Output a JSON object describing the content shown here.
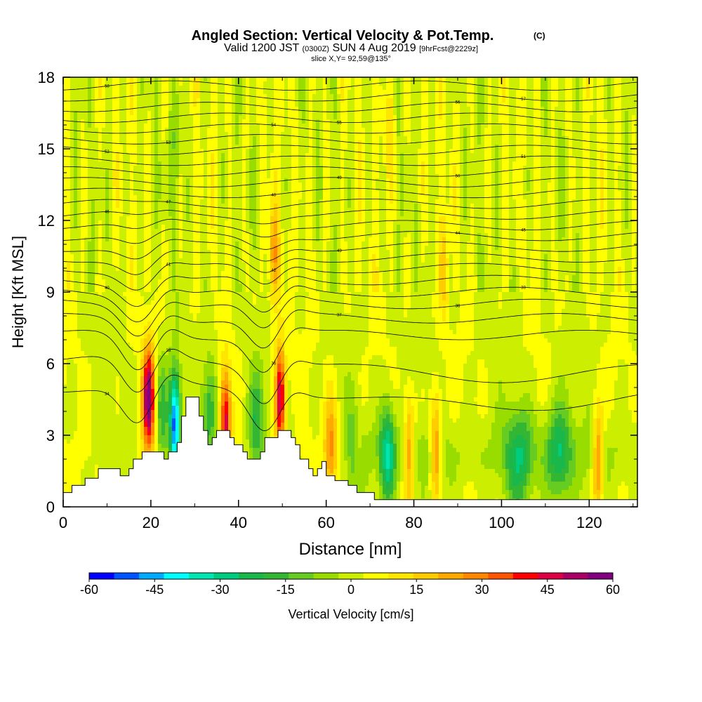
{
  "chart_data": {
    "type": "heatmap",
    "title": "Angled Section: Vertical Velocity & Pot.Temp.",
    "title_mark": "(C)",
    "subtitle_parts": [
      "Valid 1200 JST",
      "(0300Z)",
      "SUN 4 Aug 2019",
      "[9hrFcst@2229z]"
    ],
    "slice_label": "slice X,Y= 92,59@135°",
    "xlabel": "Distance [nm]",
    "ylabel": "Height [Kft MSL]",
    "xlim": [
      0,
      131
    ],
    "ylim": [
      0,
      18
    ],
    "x_ticks": [
      "0",
      "20",
      "40",
      "60",
      "80",
      "100",
      "120"
    ],
    "y_ticks": [
      "0",
      "3",
      "6",
      "9",
      "12",
      "15",
      "18"
    ],
    "colorbar": {
      "label": "Vertical Velocity [cm/s]",
      "tick_labels": [
        "-60",
        "-45",
        "-30",
        "-15",
        "0",
        "15",
        "30",
        "45",
        "60"
      ],
      "range": [
        -60,
        60
      ],
      "colors": [
        "#0000ff",
        "#0055ff",
        "#00aaff",
        "#00ffff",
        "#00e6b0",
        "#00cc80",
        "#1ab84a",
        "#33b633",
        "#66cc22",
        "#99dd00",
        "#ccee00",
        "#ffff00",
        "#ffe600",
        "#ffcc00",
        "#ffaa00",
        "#ff8800",
        "#ff5500",
        "#ff0000",
        "#dd0044",
        "#aa0066",
        "#800080"
      ]
    },
    "theta_contours": [
      {
        "label": "34",
        "base": 5.0
      },
      {
        "label": "35",
        "base": 6.2
      },
      {
        "label": "36",
        "base": 7.2
      },
      {
        "label": "37",
        "base": 7.9
      },
      {
        "label": "38",
        "base": 8.5
      },
      {
        "label": "39",
        "base": 9.0
      },
      {
        "label": "40",
        "base": 9.5
      },
      {
        "label": "41",
        "base": 10.0
      },
      {
        "label": "42",
        "base": 10.45
      },
      {
        "label": "43",
        "base": 10.9
      },
      {
        "label": "44",
        "base": 11.35
      },
      {
        "label": "45",
        "base": 11.8
      },
      {
        "label": "46",
        "base": 12.25
      },
      {
        "label": "47",
        "base": 12.7
      },
      {
        "label": "48",
        "base": 13.15
      },
      {
        "label": "49",
        "base": 13.6
      },
      {
        "label": "50",
        "base": 14.05
      },
      {
        "label": "51",
        "base": 14.5
      },
      {
        "label": "52",
        "base": 14.95
      },
      {
        "label": "53",
        "base": 15.4
      },
      {
        "label": "54",
        "base": 15.85
      },
      {
        "label": "55",
        "base": 16.3
      },
      {
        "label": "56",
        "base": 16.75
      },
      {
        "label": "57",
        "base": 17.2
      },
      {
        "label": "58",
        "base": 17.65
      }
    ],
    "updrafts": [
      {
        "x": 19.5,
        "h": 4.5,
        "w": 1.4,
        "amp": 55
      },
      {
        "x": 25.5,
        "h": 3.5,
        "w": 1.2,
        "amp": -55
      },
      {
        "x": 22.5,
        "h": 4.0,
        "w": 1.5,
        "amp": -20
      },
      {
        "x": 37.0,
        "h": 3.5,
        "w": 1.2,
        "amp": 45
      },
      {
        "x": 33.5,
        "h": 4.0,
        "w": 1.6,
        "amp": -22
      },
      {
        "x": 44.0,
        "h": 3.5,
        "w": 1.8,
        "amp": -20
      },
      {
        "x": 49.5,
        "h": 4.5,
        "w": 1.2,
        "amp": 50
      },
      {
        "x": 48.0,
        "h": 10.5,
        "w": 1.2,
        "amp": 25
      },
      {
        "x": 61.0,
        "h": 2.5,
        "w": 1.5,
        "amp": 25
      },
      {
        "x": 66.0,
        "h": 2.5,
        "w": 1.5,
        "amp": -12
      },
      {
        "x": 74.0,
        "h": 2.2,
        "w": 1.8,
        "amp": -32
      },
      {
        "x": 79.0,
        "h": 2.5,
        "w": 1.2,
        "amp": 25
      },
      {
        "x": 85.0,
        "h": 2.5,
        "w": 1.2,
        "amp": 30
      },
      {
        "x": 104.0,
        "h": 2.0,
        "w": 3.0,
        "amp": -22
      },
      {
        "x": 113.0,
        "h": 2.2,
        "w": 3.0,
        "amp": -24
      },
      {
        "x": 122.0,
        "h": 2.0,
        "w": 1.2,
        "amp": 30
      },
      {
        "x": 87.0,
        "h": 10.0,
        "w": 1.0,
        "amp": 15
      },
      {
        "x": 74.0,
        "h": 16.0,
        "w": 1.5,
        "amp": 12
      },
      {
        "x": 26.0,
        "h": 15.0,
        "w": 1.2,
        "amp": -10
      }
    ],
    "terrain": [
      [
        0,
        0.6
      ],
      [
        2,
        0.6
      ],
      [
        2,
        0.9
      ],
      [
        5,
        0.9
      ],
      [
        5,
        1.2
      ],
      [
        8,
        1.2
      ],
      [
        8,
        1.6
      ],
      [
        13,
        1.6
      ],
      [
        13,
        1.3
      ],
      [
        15,
        1.3
      ],
      [
        15,
        1.6
      ],
      [
        16,
        1.6
      ],
      [
        16,
        2.0
      ],
      [
        18,
        2.0
      ],
      [
        18,
        2.3
      ],
      [
        23,
        2.3
      ],
      [
        23,
        2.0
      ],
      [
        24,
        2.0
      ],
      [
        24,
        2.3
      ],
      [
        26,
        2.3
      ],
      [
        26,
        2.7
      ],
      [
        27,
        2.7
      ],
      [
        27,
        3.8
      ],
      [
        28,
        3.8
      ],
      [
        28,
        4.6
      ],
      [
        31,
        4.6
      ],
      [
        31,
        3.8
      ],
      [
        32,
        3.8
      ],
      [
        32,
        3.2
      ],
      [
        33,
        3.2
      ],
      [
        33,
        2.6
      ],
      [
        34,
        2.6
      ],
      [
        34,
        2.9
      ],
      [
        35,
        2.9
      ],
      [
        35,
        3.2
      ],
      [
        38,
        3.2
      ],
      [
        38,
        2.9
      ],
      [
        39,
        2.9
      ],
      [
        39,
        2.6
      ],
      [
        41,
        2.6
      ],
      [
        41,
        2.3
      ],
      [
        42,
        2.3
      ],
      [
        42,
        2.0
      ],
      [
        45,
        2.0
      ],
      [
        45,
        2.3
      ],
      [
        46,
        2.3
      ],
      [
        46,
        2.9
      ],
      [
        49,
        2.9
      ],
      [
        49,
        3.2
      ],
      [
        52,
        3.2
      ],
      [
        52,
        2.9
      ],
      [
        53,
        2.9
      ],
      [
        53,
        2.6
      ],
      [
        54,
        2.6
      ],
      [
        54,
        2.0
      ],
      [
        56,
        2.0
      ],
      [
        56,
        1.6
      ],
      [
        57,
        1.6
      ],
      [
        57,
        1.3
      ],
      [
        58,
        1.3
      ],
      [
        58,
        1.6
      ],
      [
        59,
        1.6
      ],
      [
        59,
        1.9
      ],
      [
        60,
        1.9
      ],
      [
        60,
        1.3
      ],
      [
        62,
        1.3
      ],
      [
        62,
        1.1
      ],
      [
        65,
        1.1
      ],
      [
        65,
        0.9
      ],
      [
        67,
        0.9
      ],
      [
        67,
        0.6
      ],
      [
        71,
        0.6
      ],
      [
        71,
        0.3
      ],
      [
        131,
        0.3
      ]
    ]
  }
}
